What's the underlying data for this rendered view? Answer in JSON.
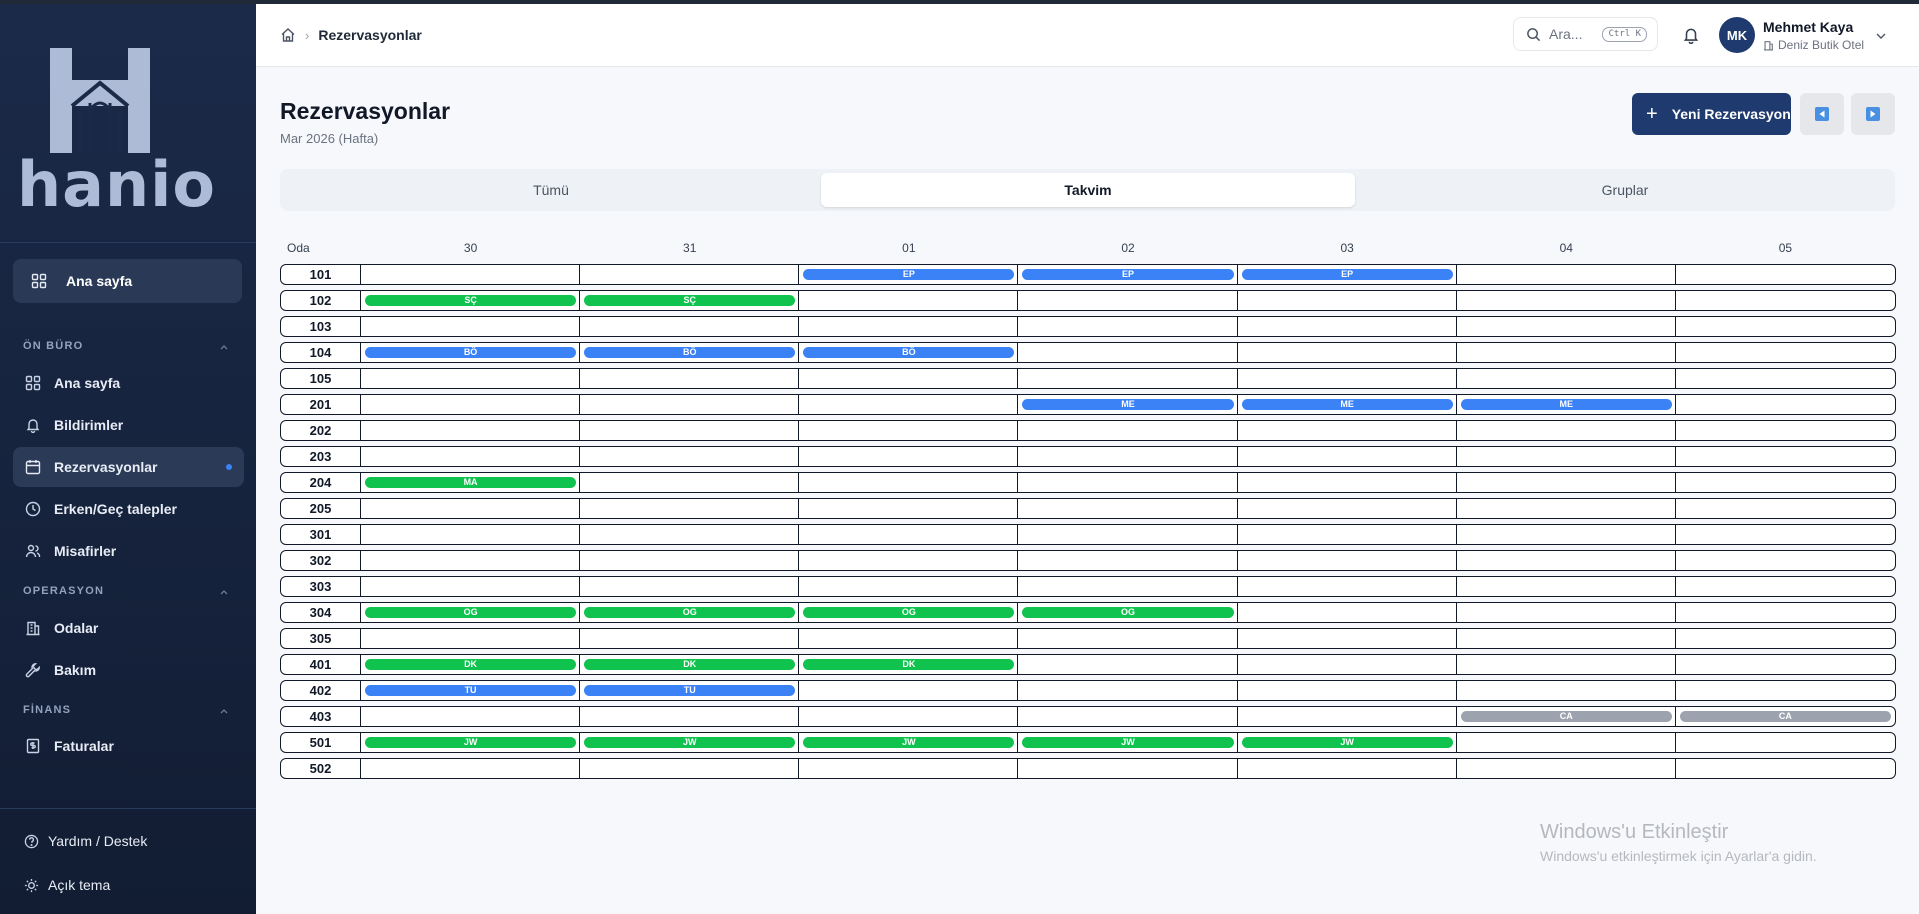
{
  "app": {
    "brand": "hanio"
  },
  "sidebar": {
    "home_label": "Ana sayfa",
    "sections": [
      {
        "label": "ÖN BÜRO",
        "items": [
          {
            "label": "Ana sayfa",
            "icon": "grid-icon"
          },
          {
            "label": "Bildirimler",
            "icon": "bell-icon"
          },
          {
            "label": "Rezervasyonlar",
            "icon": "calendar-icon",
            "active": true
          },
          {
            "label": "Erken/Geç talepler",
            "icon": "clock-icon"
          },
          {
            "label": "Misafirler",
            "icon": "users-icon"
          }
        ]
      },
      {
        "label": "OPERASYON",
        "items": [
          {
            "label": "Odalar",
            "icon": "building-icon"
          },
          {
            "label": "Bakım",
            "icon": "wrench-icon"
          }
        ]
      },
      {
        "label": "FİNANS",
        "items": [
          {
            "label": "Faturalar",
            "icon": "invoice-icon"
          }
        ]
      }
    ],
    "help_label": "Yardım / Destek",
    "theme_label": "Açık tema"
  },
  "header": {
    "breadcrumb_current": "Rezervasyonlar",
    "search_placeholder": "Ara...",
    "search_shortcut": "Ctrl K",
    "user_initials": "MK",
    "user_name": "Mehmet Kaya",
    "hotel_name": "Deniz Butik Otel"
  },
  "page": {
    "title": "Rezervasyonlar",
    "subtitle": "Mar 2026 (Hafta)",
    "new_button": "Yeni Rezervasyon"
  },
  "tabs": [
    {
      "label": "Tümü",
      "active": false
    },
    {
      "label": "Takvim",
      "active": true
    },
    {
      "label": "Gruplar",
      "active": false
    }
  ],
  "calendar": {
    "room_header": "Oda",
    "days": [
      "30",
      "31",
      "01",
      "02",
      "03",
      "04",
      "05"
    ],
    "colors": {
      "blue": "#3b82f6",
      "green": "#10c34f",
      "gray": "#9ca3af"
    },
    "rooms": [
      {
        "room": "101",
        "bookings": [
          {
            "guest": "EP",
            "start": 2,
            "days": 3,
            "color": "blue"
          }
        ]
      },
      {
        "room": "102",
        "bookings": [
          {
            "guest": "SÇ",
            "start": 0,
            "days": 2,
            "color": "green"
          }
        ]
      },
      {
        "room": "103",
        "bookings": []
      },
      {
        "room": "104",
        "bookings": [
          {
            "guest": "BÖ",
            "start": 0,
            "days": 3,
            "color": "blue"
          }
        ]
      },
      {
        "room": "105",
        "bookings": []
      },
      {
        "room": "201",
        "bookings": [
          {
            "guest": "ME",
            "start": 3,
            "days": 3,
            "color": "blue"
          }
        ]
      },
      {
        "room": "202",
        "bookings": []
      },
      {
        "room": "203",
        "bookings": []
      },
      {
        "room": "204",
        "bookings": [
          {
            "guest": "MA",
            "start": 0,
            "days": 1,
            "color": "green"
          }
        ]
      },
      {
        "room": "205",
        "bookings": []
      },
      {
        "room": "301",
        "bookings": []
      },
      {
        "room": "302",
        "bookings": []
      },
      {
        "room": "303",
        "bookings": []
      },
      {
        "room": "304",
        "bookings": [
          {
            "guest": "OG",
            "start": 0,
            "days": 4,
            "color": "green"
          }
        ]
      },
      {
        "room": "305",
        "bookings": []
      },
      {
        "room": "401",
        "bookings": [
          {
            "guest": "DK",
            "start": 0,
            "days": 3,
            "color": "green"
          }
        ]
      },
      {
        "room": "402",
        "bookings": [
          {
            "guest": "TU",
            "start": 0,
            "days": 2,
            "color": "blue"
          }
        ]
      },
      {
        "room": "403",
        "bookings": [
          {
            "guest": "CA",
            "start": 5,
            "days": 2,
            "color": "gray"
          }
        ]
      },
      {
        "room": "501",
        "bookings": [
          {
            "guest": "JW",
            "start": 0,
            "days": 5,
            "color": "green"
          }
        ]
      },
      {
        "room": "502",
        "bookings": []
      }
    ]
  },
  "watermark": {
    "title": "Windows'u Etkinleştir",
    "subtitle": "Windows'u etkinleştirmek için Ayarlar'a gidin."
  }
}
